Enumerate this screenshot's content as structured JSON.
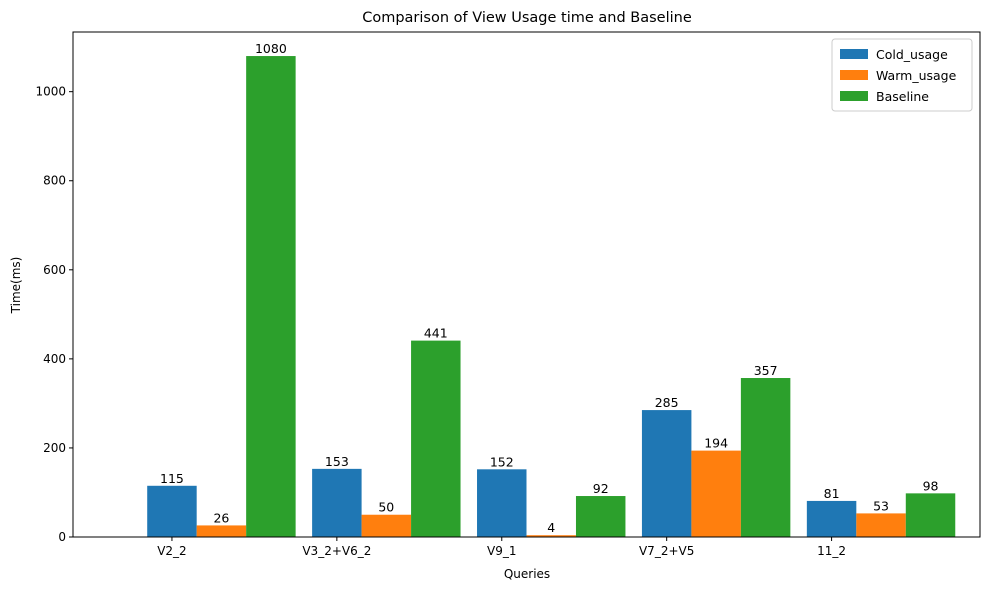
{
  "chart_data": {
    "type": "bar",
    "title": "Comparison of View Usage time and Baseline",
    "xlabel": "Queries",
    "ylabel": "Time(ms)",
    "categories": [
      "V2_2",
      "V3_2+V6_2",
      "V9_1",
      "V7_2+V5",
      "11_2"
    ],
    "series": [
      {
        "name": "Cold_usage",
        "color": "#1f77b4",
        "values": [
          115,
          153,
          152,
          285,
          81
        ]
      },
      {
        "name": "Warm_usage",
        "color": "#ff7f0e",
        "values": [
          26,
          50,
          4,
          194,
          53
        ]
      },
      {
        "name": "Baseline",
        "color": "#2ca02c",
        "values": [
          1080,
          441,
          92,
          357,
          98
        ]
      }
    ],
    "ylim": [
      0,
      1134
    ],
    "yticks": [
      0,
      200,
      400,
      600,
      800,
      1000
    ],
    "grid": false,
    "legend_position": "top-right"
  }
}
